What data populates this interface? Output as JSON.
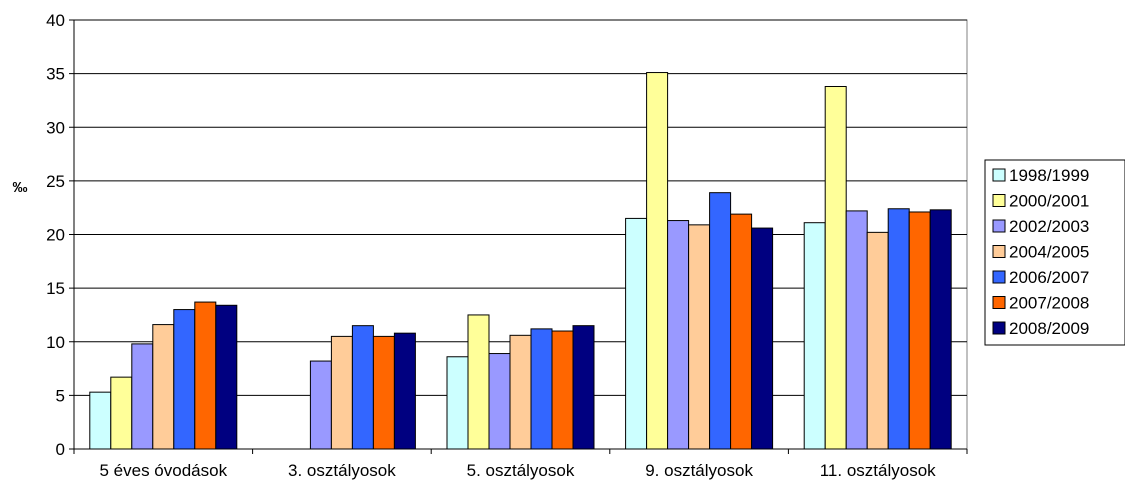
{
  "chart_data": {
    "type": "bar",
    "title": "",
    "xlabel": "",
    "ylabel": "‰",
    "ylim": [
      0,
      40
    ],
    "yticks": [
      0,
      5,
      10,
      15,
      20,
      25,
      30,
      35,
      40
    ],
    "grid": true,
    "legend_position": "right",
    "categories": [
      "5 éves óvodások",
      "3. osztályosok",
      "5. osztályosok",
      "9. osztályosok",
      "11. osztályosok"
    ],
    "series": [
      {
        "name": "1998/1999",
        "color": "#ccffff",
        "values": [
          5.3,
          null,
          8.6,
          21.5,
          21.1
        ]
      },
      {
        "name": "2000/2001",
        "color": "#ffff99",
        "values": [
          6.7,
          null,
          12.5,
          35.1,
          33.8
        ]
      },
      {
        "name": "2002/2003",
        "color": "#9999ff",
        "values": [
          9.8,
          8.2,
          8.9,
          21.3,
          22.2
        ]
      },
      {
        "name": "2004/2005",
        "color": "#ffcc99",
        "values": [
          11.6,
          10.5,
          10.6,
          20.9,
          20.2
        ]
      },
      {
        "name": "2006/2007",
        "color": "#3366ff",
        "values": [
          13.0,
          11.5,
          11.2,
          23.9,
          22.4
        ]
      },
      {
        "name": "2007/2008",
        "color": "#ff6600",
        "values": [
          13.7,
          10.5,
          11.0,
          21.9,
          22.1
        ]
      },
      {
        "name": "2008/2009",
        "color": "#000080",
        "values": [
          13.4,
          10.8,
          11.5,
          20.6,
          22.3
        ]
      }
    ]
  }
}
